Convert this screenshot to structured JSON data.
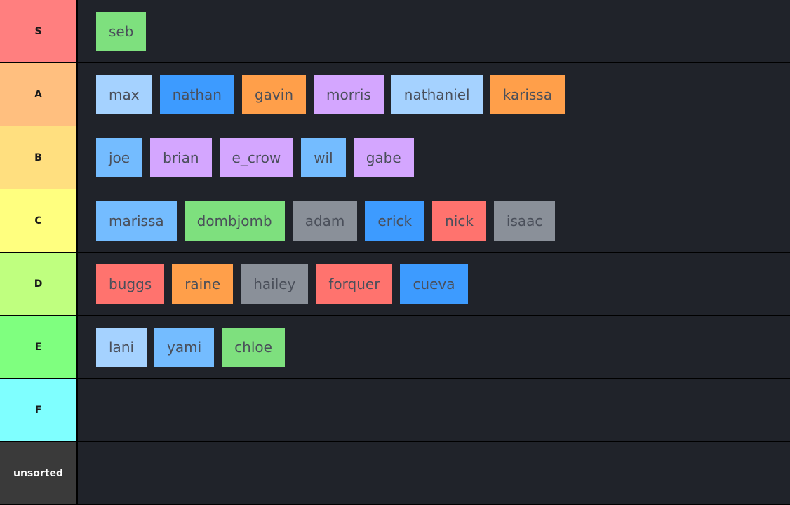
{
  "colors": {
    "tier_S": "#ff7f7f",
    "tier_A": "#ffbf7f",
    "tier_B": "#ffdf7f",
    "tier_C": "#ffff7f",
    "tier_D": "#bfff7f",
    "tier_E": "#7fff7f",
    "tier_F": "#7fffff",
    "tier_unsorted": "#3a3a3a",
    "row_bg": "#20232a",
    "green": "#7ee07e",
    "lightblue": "#a5d2ff",
    "blue": "#3d9bff",
    "orange": "#ff9f4a",
    "purple": "#d4a6ff",
    "skyblue": "#74bcff",
    "gray": "#8a9099",
    "red": "#ff736e"
  },
  "tiers": [
    {
      "label": "S",
      "color": "#ff7f7f",
      "items": [
        {
          "name": "seb",
          "color": "#7ee07e"
        }
      ]
    },
    {
      "label": "A",
      "color": "#ffbf7f",
      "items": [
        {
          "name": "max",
          "color": "#a5d2ff"
        },
        {
          "name": "nathan",
          "color": "#3d9bff"
        },
        {
          "name": "gavin",
          "color": "#ff9f4a"
        },
        {
          "name": "morris",
          "color": "#d4a6ff"
        },
        {
          "name": "nathaniel",
          "color": "#a5d2ff"
        },
        {
          "name": "karissa",
          "color": "#ff9f4a"
        }
      ]
    },
    {
      "label": "B",
      "color": "#ffdf7f",
      "items": [
        {
          "name": "joe",
          "color": "#74bcff"
        },
        {
          "name": "brian",
          "color": "#d4a6ff"
        },
        {
          "name": "e_crow",
          "color": "#d4a6ff"
        },
        {
          "name": "wil",
          "color": "#74bcff"
        },
        {
          "name": "gabe",
          "color": "#d4a6ff"
        }
      ]
    },
    {
      "label": "C",
      "color": "#ffff7f",
      "items": [
        {
          "name": "marissa",
          "color": "#74bcff"
        },
        {
          "name": "dombjomb",
          "color": "#7ee07e"
        },
        {
          "name": "adam",
          "color": "#8a9099"
        },
        {
          "name": "erick",
          "color": "#3d9bff"
        },
        {
          "name": "nick",
          "color": "#ff736e"
        },
        {
          "name": "isaac",
          "color": "#8a9099"
        }
      ]
    },
    {
      "label": "D",
      "color": "#bfff7f",
      "items": [
        {
          "name": "buggs",
          "color": "#ff736e"
        },
        {
          "name": "raine",
          "color": "#ff9f4a"
        },
        {
          "name": "hailey",
          "color": "#8a9099"
        },
        {
          "name": "forquer",
          "color": "#ff736e"
        },
        {
          "name": "cueva",
          "color": "#3d9bff"
        }
      ]
    },
    {
      "label": "E",
      "color": "#7fff7f",
      "items": [
        {
          "name": "lani",
          "color": "#a5d2ff"
        },
        {
          "name": "yami",
          "color": "#74bcff"
        },
        {
          "name": "chloe",
          "color": "#7ee07e"
        }
      ]
    },
    {
      "label": "F",
      "color": "#7fffff",
      "items": []
    },
    {
      "label": "unsorted",
      "color": "#3a3a3a",
      "items": []
    }
  ]
}
